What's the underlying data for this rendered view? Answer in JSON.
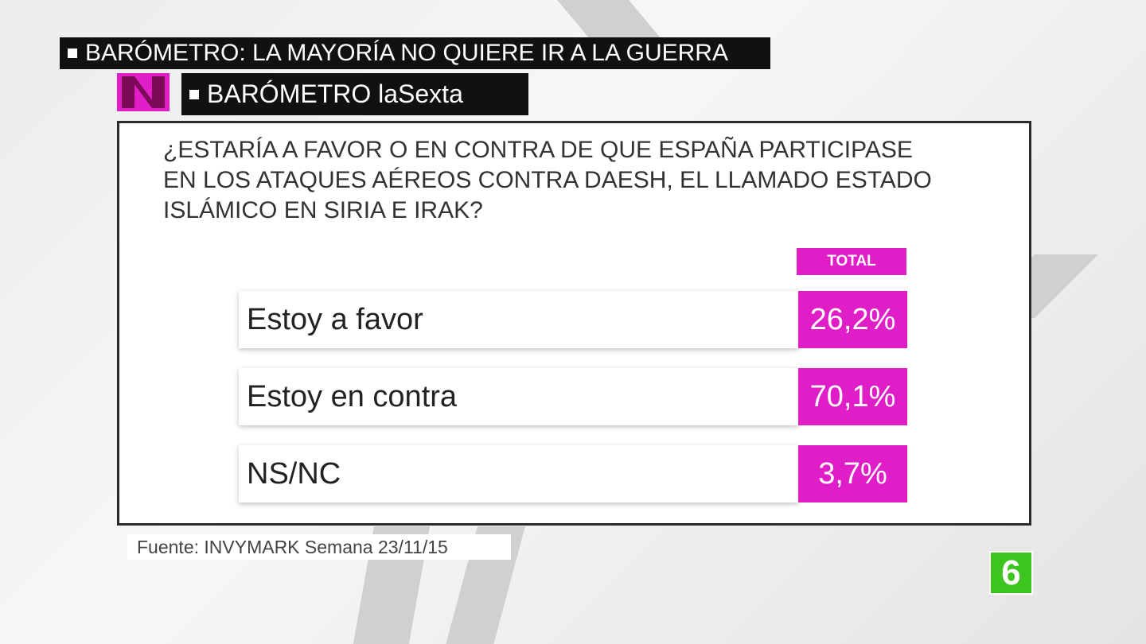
{
  "banner": "BARÓMETRO: LA MAYORÍA NO QUIERE IR A LA GUERRA",
  "subbanner": "BARÓMETRO laSexta",
  "question_lines": [
    "¿ESTARÍA A FAVOR O EN CONTRA DE QUE ESPAÑA PARTICIPASE",
    "EN LOS ATAQUES AÉREOS CONTRA DAESH, EL LLAMADO ESTADO",
    "ISLÁMICO EN SIRIA E IRAK?"
  ],
  "table": {
    "header": "TOTAL",
    "rows": [
      [
        "Estoy a favor",
        "26,2%"
      ],
      [
        "Estoy en contra",
        "70,1%"
      ],
      [
        "NS/NC",
        "3,7%"
      ]
    ]
  },
  "source": "Fuente: INVYMARK Semana 23/11/15",
  "channel_logo": "6"
}
